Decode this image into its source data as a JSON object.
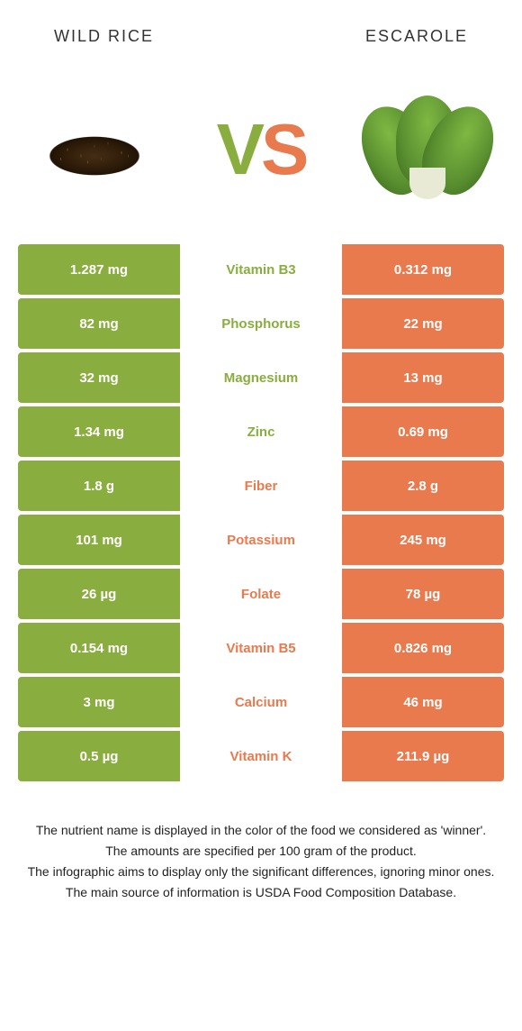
{
  "header": {
    "left_title": "Wild rice",
    "right_title": "Escarole"
  },
  "vs": {
    "v": "V",
    "s": "S"
  },
  "colors": {
    "left": "#8aad3f",
    "right": "#e87a4e",
    "background": "#ffffff",
    "text": "#333333"
  },
  "rows": [
    {
      "nutrient": "Vitamin B3",
      "left": "1.287 mg",
      "right": "0.312 mg",
      "winner": "left"
    },
    {
      "nutrient": "Phosphorus",
      "left": "82 mg",
      "right": "22 mg",
      "winner": "left"
    },
    {
      "nutrient": "Magnesium",
      "left": "32 mg",
      "right": "13 mg",
      "winner": "left"
    },
    {
      "nutrient": "Zinc",
      "left": "1.34 mg",
      "right": "0.69 mg",
      "winner": "left"
    },
    {
      "nutrient": "Fiber",
      "left": "1.8 g",
      "right": "2.8 g",
      "winner": "right"
    },
    {
      "nutrient": "Potassium",
      "left": "101 mg",
      "right": "245 mg",
      "winner": "right"
    },
    {
      "nutrient": "Folate",
      "left": "26 µg",
      "right": "78 µg",
      "winner": "right"
    },
    {
      "nutrient": "Vitamin B5",
      "left": "0.154 mg",
      "right": "0.826 mg",
      "winner": "right"
    },
    {
      "nutrient": "Calcium",
      "left": "3 mg",
      "right": "46 mg",
      "winner": "right"
    },
    {
      "nutrient": "Vitamin K",
      "left": "0.5 µg",
      "right": "211.9 µg",
      "winner": "right"
    }
  ],
  "footer": {
    "line1": "The nutrient name is displayed in the color of the food we considered as 'winner'.",
    "line2": "The amounts are specified per 100 gram of the product.",
    "line3": "The infographic aims to display only the significant differences, ignoring minor ones.",
    "line4": "The main source of information is USDA Food Composition Database."
  }
}
